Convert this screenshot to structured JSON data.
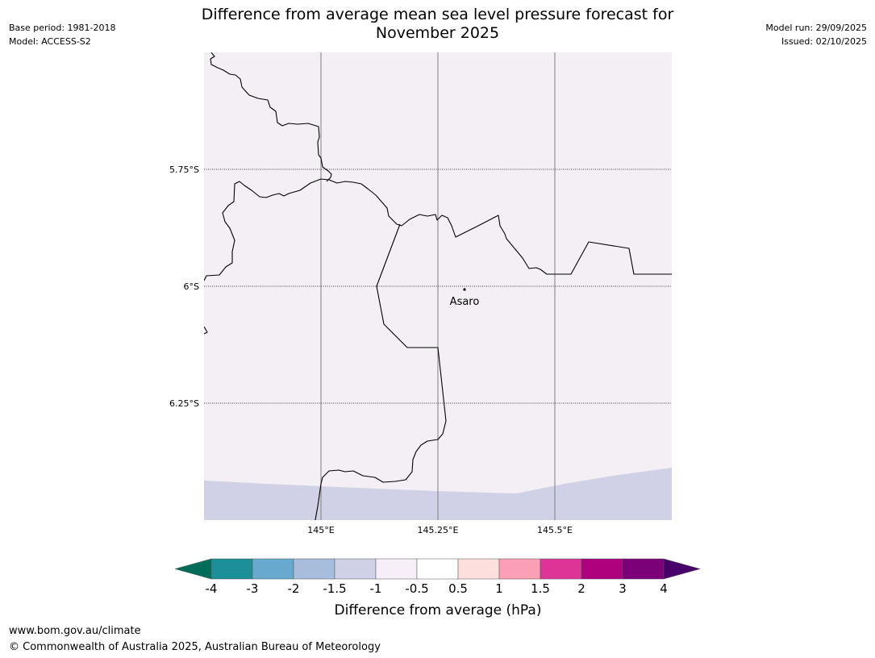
{
  "header": {
    "base_period": "Base period: 1981-2018",
    "model": "Model: ACCESS-S2",
    "title_line1": "Difference from average mean sea level pressure forecast for",
    "title_line2": "November 2025",
    "model_run": "Model run: 29/09/2025",
    "issued": "Issued: 02/10/2025"
  },
  "map": {
    "lat_labels": [
      "5.75°S",
      "6°S",
      "6.25°S"
    ],
    "lon_labels": [
      "145°E",
      "145.25°E",
      "145.5°E"
    ],
    "place_name": "Asaro",
    "colors": {
      "background_fill": "#f4eef5",
      "lower_band_fill": "#d0d1e6",
      "border_line": "#000000",
      "meridian_line": "#808080"
    }
  },
  "colorbar": {
    "ticks": [
      "-4",
      "-3",
      "-2",
      "-1.5",
      "-1",
      "-0.5",
      "0.5",
      "1",
      "1.5",
      "2",
      "3",
      "4"
    ],
    "colors": [
      "#016c59",
      "#1c9099",
      "#67a9cf",
      "#a6bddb",
      "#d0d1e6",
      "#f6eff7",
      "#ffffff",
      "#fde0dd",
      "#fa9fb5",
      "#dd3497",
      "#ae017e",
      "#7a0177",
      "#49006a"
    ],
    "label": "Difference from average (hPa)"
  },
  "footer": {
    "url": "www.bom.gov.au/climate",
    "copyright": "© Commonwealth of Australia 2025, Australian Bureau of Meteorology"
  }
}
